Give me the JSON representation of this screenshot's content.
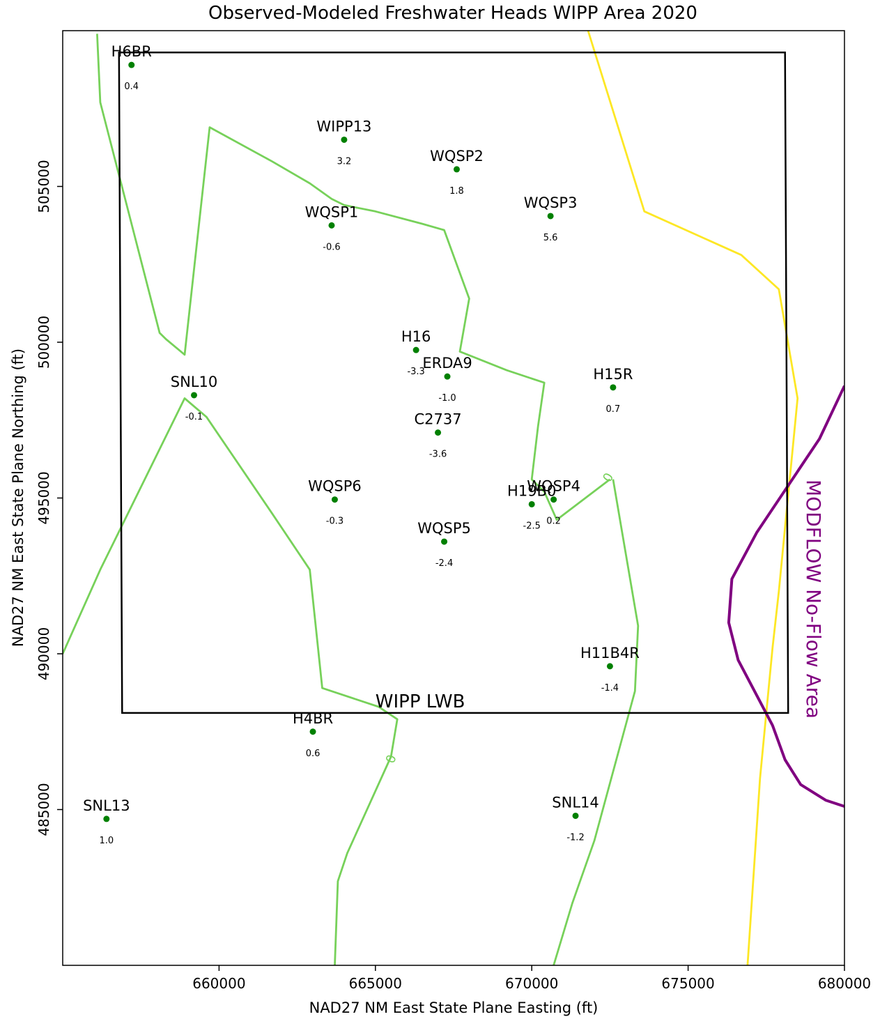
{
  "chart_data": {
    "type": "scatter",
    "title": "Observed-Modeled Freshwater Heads WIPP Area 2020",
    "xlabel": "NAD27 NM East State Plane Easting (ft)",
    "ylabel": "NAD27 NM East State Plane Northing (ft)",
    "xlim": [
      655000,
      680000
    ],
    "ylim": [
      480000,
      510000
    ],
    "xticks": [
      660000,
      665000,
      670000,
      675000,
      680000
    ],
    "xtick_labels": [
      "660000",
      "665000",
      "670000",
      "675000",
      "680000"
    ],
    "yticks": [
      485000,
      490000,
      495000,
      500000,
      505000
    ],
    "ytick_labels": [
      "485000",
      "490000",
      "495000",
      "500000",
      "505000"
    ],
    "grid": false,
    "colors": {
      "point": "#008000",
      "contour_zero": "#77d15a",
      "contour_yellow": "#fde725",
      "noflow": "#800080",
      "boundary": "#000000"
    },
    "points": [
      {
        "name": "H6BR",
        "x": 657200,
        "y": 508900,
        "value": "0.4"
      },
      {
        "name": "WIPP13",
        "x": 664000,
        "y": 506500,
        "value": "3.2"
      },
      {
        "name": "WQSP2",
        "x": 667600,
        "y": 505550,
        "value": "1.8"
      },
      {
        "name": "WQSP3",
        "x": 670600,
        "y": 504050,
        "value": "5.6"
      },
      {
        "name": "WQSP1",
        "x": 663600,
        "y": 503750,
        "value": "-0.6"
      },
      {
        "name": "H16",
        "x": 666300,
        "y": 499750,
        "value": "-3.3"
      },
      {
        "name": "ERDA9",
        "x": 667300,
        "y": 498900,
        "value": "-1.0"
      },
      {
        "name": "H15R",
        "x": 672600,
        "y": 498550,
        "value": "0.7"
      },
      {
        "name": "SNL10",
        "x": 659200,
        "y": 498300,
        "value": "-0.1"
      },
      {
        "name": "C2737",
        "x": 667000,
        "y": 497100,
        "value": "-3.6"
      },
      {
        "name": "WQSP6",
        "x": 663700,
        "y": 494950,
        "value": "-0.3"
      },
      {
        "name": "WQSP4",
        "x": 670700,
        "y": 494950,
        "value": "0.2"
      },
      {
        "name": "H19B0",
        "x": 670000,
        "y": 494800,
        "value": "-2.5"
      },
      {
        "name": "WQSP5",
        "x": 667200,
        "y": 493600,
        "value": "-2.4"
      },
      {
        "name": "H11B4R",
        "x": 672500,
        "y": 489600,
        "value": "-1.4"
      },
      {
        "name": "H4BR",
        "x": 663000,
        "y": 487500,
        "value": "0.6"
      },
      {
        "name": "SNL13",
        "x": 656400,
        "y": 484700,
        "value": "1.0"
      },
      {
        "name": "SNL14",
        "x": 671400,
        "y": 484800,
        "value": "-1.2"
      }
    ],
    "contours": [
      {
        "level": "0",
        "color": "contour_zero",
        "points": [
          [
            656100,
            509900
          ],
          [
            656200,
            507700
          ],
          [
            658100,
            500300
          ],
          [
            658300,
            500100
          ],
          [
            658900,
            499600
          ],
          [
            659700,
            506900
          ],
          [
            661700,
            505800
          ],
          [
            662900,
            505100
          ],
          [
            663600,
            504600
          ],
          [
            664000,
            504400
          ],
          [
            665000,
            504200
          ],
          [
            666500,
            503800
          ],
          [
            667200,
            503600
          ],
          [
            668000,
            501400
          ],
          [
            667700,
            499700
          ],
          [
            669200,
            499100
          ],
          [
            670400,
            498700
          ],
          [
            670200,
            497300
          ],
          [
            670000,
            495600
          ],
          [
            670400,
            495200
          ],
          [
            670800,
            494300
          ],
          [
            672500,
            495600
          ]
        ]
      },
      {
        "level": "0",
        "color": "contour_zero",
        "points": [
          [
            655000,
            490000
          ],
          [
            656200,
            492700
          ],
          [
            658900,
            498200
          ],
          [
            659600,
            497600
          ],
          [
            661700,
            494500
          ],
          [
            662900,
            492700
          ],
          [
            663300,
            488900
          ],
          [
            665100,
            488300
          ],
          [
            665700,
            487900
          ],
          [
            665500,
            486700
          ],
          [
            664100,
            483600
          ],
          [
            663800,
            482700
          ],
          [
            663700,
            480000
          ]
        ]
      },
      {
        "level": "0",
        "color": "contour_zero",
        "points": [
          [
            672600,
            495600
          ],
          [
            673400,
            490900
          ],
          [
            673300,
            488800
          ],
          [
            672000,
            484000
          ],
          [
            671300,
            482000
          ],
          [
            670700,
            480000
          ]
        ]
      },
      {
        "level": "",
        "color": "contour_yellow",
        "points": [
          [
            671800,
            510000
          ],
          [
            673600,
            504200
          ],
          [
            676700,
            502800
          ],
          [
            677900,
            501700
          ],
          [
            678500,
            498200
          ],
          [
            677900,
            492000
          ],
          [
            677700,
            490200
          ],
          [
            677300,
            486000
          ],
          [
            676900,
            480000
          ]
        ]
      },
      {
        "level": "",
        "color": "noflow",
        "points": [
          [
            680000,
            498600
          ],
          [
            679200,
            496900
          ],
          [
            677200,
            493900
          ],
          [
            676400,
            492400
          ],
          [
            676300,
            491000
          ],
          [
            676600,
            489800
          ],
          [
            677700,
            487700
          ],
          [
            678100,
            486600
          ],
          [
            678600,
            485800
          ],
          [
            679400,
            485300
          ],
          [
            680000,
            485100
          ]
        ]
      }
    ],
    "boundary_polygon": [
      [
        656800,
        509300
      ],
      [
        678100,
        509300
      ],
      [
        678200,
        488100
      ],
      [
        656900,
        488100
      ]
    ],
    "annotations": {
      "boundary_label": "WIPP LWB",
      "noflow_label": "MODFLOW No-Flow Area",
      "contour_label_a": "0",
      "contour_label_b": "0"
    }
  }
}
